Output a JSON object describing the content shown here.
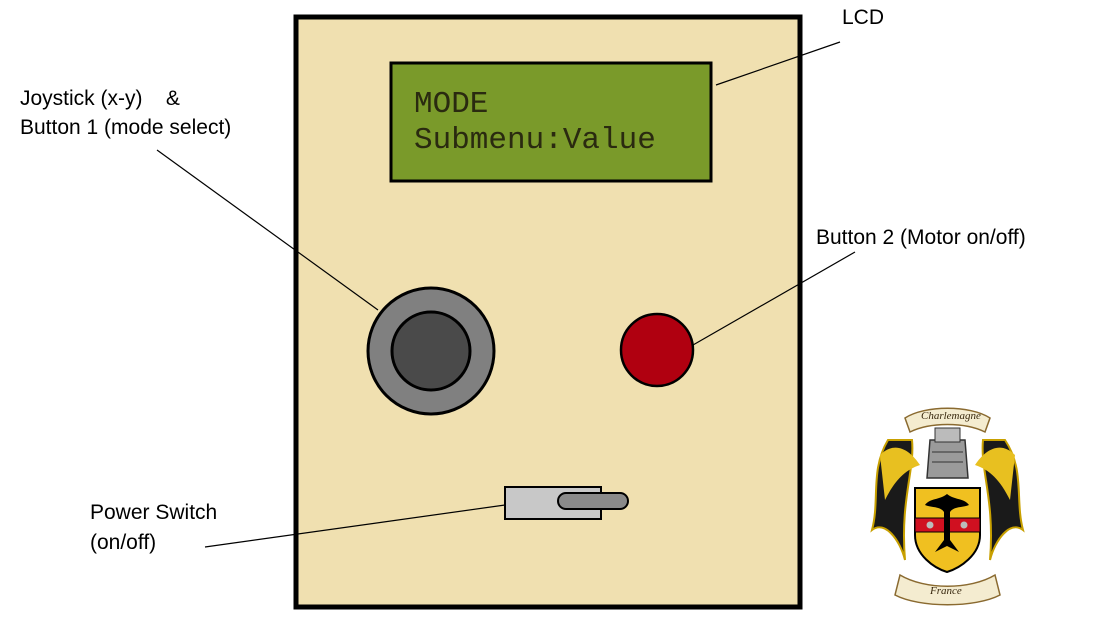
{
  "labels": {
    "lcd": "LCD",
    "joystick_line1": "Joystick (x-y)    &",
    "joystick_line2": "Button 1 (mode select)",
    "button2": "Button 2 (Motor on/off)",
    "power_line1": "Power Switch",
    "power_line2": "(on/off)"
  },
  "lcd_display": {
    "line1": "MODE",
    "line2": "Submenu:Value"
  },
  "crest": {
    "top_banner": "Charlemagne",
    "bottom_banner": "France"
  },
  "colors": {
    "panel": "#f0e0b0",
    "lcd": "#7a9a2a",
    "joystick_outer": "#808080",
    "joystick_inner": "#4a4a4a",
    "button2": "#b00010",
    "switch": "#c8c8c8"
  }
}
